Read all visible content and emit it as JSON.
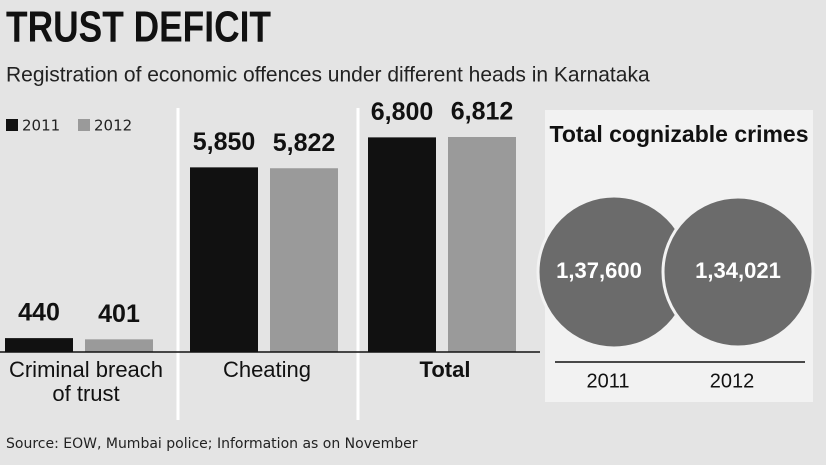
{
  "title": "TRUST DEFICIT",
  "subtitle": "Registration of economic offences under different heads in Karnataka",
  "source": "Source: EOW, Mumbai police; Information as on November",
  "chart_data": [
    {
      "type": "bar",
      "categories": [
        "Criminal breach of trust",
        "Cheating",
        "Total"
      ],
      "series": [
        {
          "name": "2011",
          "color": "#111111",
          "values": [
            440,
            5850,
            6800
          ],
          "value_labels": [
            "440",
            "5,850",
            "6,800"
          ]
        },
        {
          "name": "2012",
          "color": "#9a9a9a",
          "values": [
            401,
            5822,
            6812
          ],
          "value_labels": [
            "401",
            "5,822",
            "6,812"
          ]
        }
      ]
    },
    {
      "type": "venn",
      "title": "Total cognizable crimes",
      "categories": [
        "2011",
        "2012"
      ],
      "values": [
        137600,
        134021
      ],
      "value_labels": [
        "1,37,600",
        "1,34,021"
      ],
      "color": "#6b6b6b"
    }
  ]
}
